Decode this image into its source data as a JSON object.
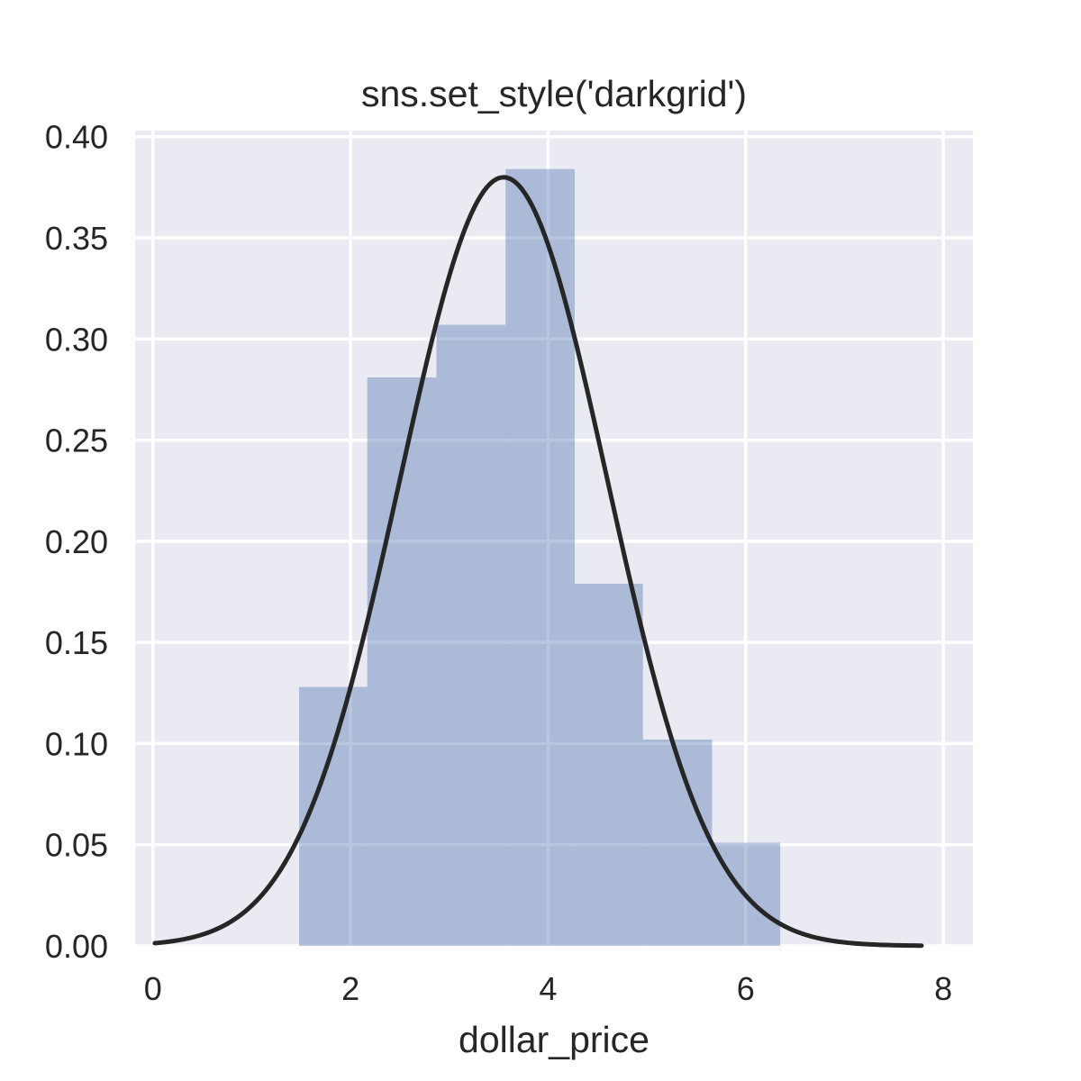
{
  "chart_data": {
    "type": "bar",
    "title": "sns.set_style('darkgrid')",
    "xlabel": "dollar_price",
    "ylabel": "",
    "xlim": [
      -0.18,
      8.3
    ],
    "ylim": [
      0,
      0.403
    ],
    "x_ticks": [
      0,
      2,
      4,
      6,
      8
    ],
    "x_tick_labels": [
      "0",
      "2",
      "4",
      "6",
      "8"
    ],
    "y_ticks": [
      0,
      0.05,
      0.1,
      0.15,
      0.2,
      0.25,
      0.3,
      0.35,
      0.4
    ],
    "y_tick_labels": [
      "0.00",
      "0.05",
      "0.10",
      "0.15",
      "0.20",
      "0.25",
      "0.30",
      "0.35",
      "0.40"
    ],
    "grid": true,
    "style": "darkgrid",
    "histogram": {
      "bin_edges": [
        1.48,
        2.17,
        2.87,
        3.57,
        4.27,
        4.96,
        5.66,
        6.35
      ],
      "densities": [
        0.128,
        0.281,
        0.307,
        0.384,
        0.179,
        0.102,
        0.051
      ],
      "color": "#4c72b0",
      "opacity": 0.4
    },
    "density_curve": {
      "distribution": "normal",
      "mean": 3.55,
      "std": 1.05,
      "x_range": [
        0.02,
        7.78
      ],
      "color": "#262626"
    },
    "colors": {
      "axes_background": "#eaeaf2",
      "grid": "#ffffff",
      "text": "#262626"
    }
  }
}
